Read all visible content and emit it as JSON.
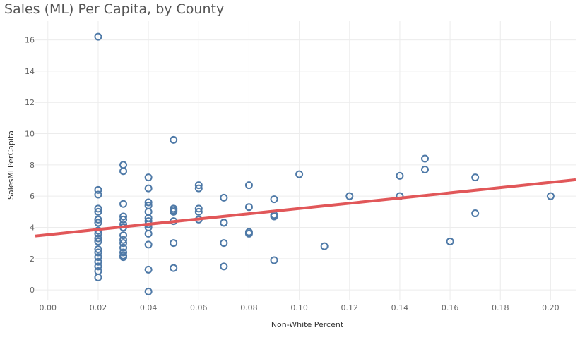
{
  "chart_data": {
    "type": "scatter",
    "title": "Sales (ML) Per Capita, by County",
    "xlabel": "Non-White Percent",
    "ylabel": "SalesMLPerCapita",
    "xlim": [
      -0.005,
      0.21
    ],
    "ylim": [
      -0.4,
      17.2
    ],
    "x_ticks": [
      "0.00",
      "0.02",
      "0.04",
      "0.06",
      "0.08",
      "0.10",
      "0.12",
      "0.14",
      "0.16",
      "0.18",
      "0.20"
    ],
    "y_ticks": [
      "0",
      "2",
      "4",
      "6",
      "8",
      "10",
      "12",
      "14",
      "16"
    ],
    "grid": true,
    "marker_color": "#4e79a7",
    "trend_color": "#e15759",
    "trend_line": {
      "x": [
        -0.005,
        0.21
      ],
      "y": [
        3.45,
        7.05
      ]
    },
    "points": [
      {
        "x": 0.02,
        "y": 16.2
      },
      {
        "x": 0.02,
        "y": 6.4
      },
      {
        "x": 0.02,
        "y": 6.1
      },
      {
        "x": 0.02,
        "y": 5.2
      },
      {
        "x": 0.02,
        "y": 5.0
      },
      {
        "x": 0.02,
        "y": 4.5
      },
      {
        "x": 0.02,
        "y": 4.3
      },
      {
        "x": 0.02,
        "y": 3.8
      },
      {
        "x": 0.02,
        "y": 3.6
      },
      {
        "x": 0.02,
        "y": 3.3
      },
      {
        "x": 0.02,
        "y": 3.1
      },
      {
        "x": 0.02,
        "y": 2.6
      },
      {
        "x": 0.02,
        "y": 2.4
      },
      {
        "x": 0.02,
        "y": 2.1
      },
      {
        "x": 0.02,
        "y": 1.8
      },
      {
        "x": 0.02,
        "y": 1.5
      },
      {
        "x": 0.02,
        "y": 1.2
      },
      {
        "x": 0.02,
        "y": 0.8
      },
      {
        "x": 0.03,
        "y": 8.0
      },
      {
        "x": 0.03,
        "y": 7.6
      },
      {
        "x": 0.03,
        "y": 5.5
      },
      {
        "x": 0.03,
        "y": 4.7
      },
      {
        "x": 0.03,
        "y": 4.5
      },
      {
        "x": 0.03,
        "y": 4.2
      },
      {
        "x": 0.03,
        "y": 4.0
      },
      {
        "x": 0.03,
        "y": 3.5
      },
      {
        "x": 0.03,
        "y": 3.2
      },
      {
        "x": 0.03,
        "y": 3.0
      },
      {
        "x": 0.03,
        "y": 2.7
      },
      {
        "x": 0.03,
        "y": 2.4
      },
      {
        "x": 0.03,
        "y": 2.2
      },
      {
        "x": 0.03,
        "y": 2.1
      },
      {
        "x": 0.04,
        "y": 7.2
      },
      {
        "x": 0.04,
        "y": 6.5
      },
      {
        "x": 0.04,
        "y": 5.6
      },
      {
        "x": 0.04,
        "y": 5.4
      },
      {
        "x": 0.04,
        "y": 5.0
      },
      {
        "x": 0.04,
        "y": 4.6
      },
      {
        "x": 0.04,
        "y": 4.4
      },
      {
        "x": 0.04,
        "y": 4.2
      },
      {
        "x": 0.04,
        "y": 4.0
      },
      {
        "x": 0.04,
        "y": 3.6
      },
      {
        "x": 0.04,
        "y": 2.9
      },
      {
        "x": 0.04,
        "y": 1.3
      },
      {
        "x": 0.04,
        "y": -0.1
      },
      {
        "x": 0.05,
        "y": 9.6
      },
      {
        "x": 0.05,
        "y": 5.2
      },
      {
        "x": 0.05,
        "y": 5.1
      },
      {
        "x": 0.05,
        "y": 5.0
      },
      {
        "x": 0.05,
        "y": 4.4
      },
      {
        "x": 0.05,
        "y": 3.0
      },
      {
        "x": 0.05,
        "y": 1.4
      },
      {
        "x": 0.06,
        "y": 6.7
      },
      {
        "x": 0.06,
        "y": 6.5
      },
      {
        "x": 0.06,
        "y": 5.2
      },
      {
        "x": 0.06,
        "y": 5.0
      },
      {
        "x": 0.06,
        "y": 4.5
      },
      {
        "x": 0.07,
        "y": 5.9
      },
      {
        "x": 0.07,
        "y": 4.3
      },
      {
        "x": 0.07,
        "y": 4.3
      },
      {
        "x": 0.07,
        "y": 3.0
      },
      {
        "x": 0.07,
        "y": 1.5
      },
      {
        "x": 0.08,
        "y": 6.7
      },
      {
        "x": 0.08,
        "y": 5.3
      },
      {
        "x": 0.08,
        "y": 3.7
      },
      {
        "x": 0.08,
        "y": 3.6
      },
      {
        "x": 0.09,
        "y": 5.8
      },
      {
        "x": 0.09,
        "y": 4.8
      },
      {
        "x": 0.09,
        "y": 4.7
      },
      {
        "x": 0.09,
        "y": 1.9
      },
      {
        "x": 0.1,
        "y": 7.4
      },
      {
        "x": 0.11,
        "y": 2.8
      },
      {
        "x": 0.12,
        "y": 6.0
      },
      {
        "x": 0.14,
        "y": 7.3
      },
      {
        "x": 0.14,
        "y": 6.0
      },
      {
        "x": 0.15,
        "y": 8.4
      },
      {
        "x": 0.15,
        "y": 7.7
      },
      {
        "x": 0.16,
        "y": 3.1
      },
      {
        "x": 0.17,
        "y": 7.2
      },
      {
        "x": 0.17,
        "y": 4.9
      },
      {
        "x": 0.2,
        "y": 6.0
      }
    ]
  }
}
